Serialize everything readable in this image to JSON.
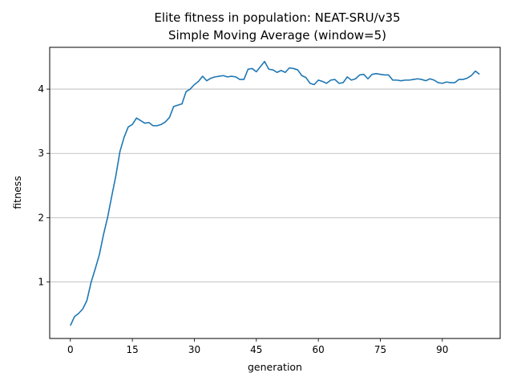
{
  "chart_data": {
    "type": "line",
    "title": "Elite fitness in population: NEAT-SRU/v35",
    "subtitle": "Simple Moving Average (window=5)",
    "xlabel": "generation",
    "ylabel": "fitness",
    "xlim": [
      -5,
      104
    ],
    "ylim": [
      0.12,
      4.65
    ],
    "xticks": [
      0,
      15,
      30,
      45,
      60,
      75,
      90
    ],
    "xtick_labels": [
      "0",
      "15",
      "30",
      "45",
      "60",
      "75",
      "90"
    ],
    "yticks": [
      1,
      2,
      3,
      4
    ],
    "ytick_labels": [
      "1",
      "2",
      "3",
      "4"
    ],
    "grid": "horizontal",
    "legend": "none",
    "line_color": "#1f77b4",
    "series": [
      {
        "x": [
          0,
          1,
          2,
          3,
          4,
          5,
          6,
          7,
          8,
          9,
          10,
          11,
          12,
          13,
          14,
          15,
          16,
          17,
          18,
          19,
          20,
          21,
          22,
          23,
          24,
          25,
          26,
          27,
          28,
          29,
          30,
          31,
          32,
          33,
          34,
          35,
          36,
          37,
          38,
          39,
          40,
          41,
          42,
          43,
          44,
          45,
          46,
          47,
          48,
          49,
          50,
          51,
          52,
          53,
          54,
          55,
          56,
          57,
          58,
          59,
          60,
          61,
          62,
          63,
          64,
          65,
          66,
          67,
          68,
          69,
          70,
          71,
          72,
          73,
          74,
          75,
          76,
          77,
          78,
          79,
          80,
          81,
          82,
          83,
          84,
          85,
          86,
          87,
          88,
          89,
          90,
          91,
          92,
          93,
          94,
          95,
          96,
          97,
          98,
          99
        ],
        "values": [
          0.32,
          0.46,
          0.51,
          0.58,
          0.71,
          0.99,
          1.2,
          1.42,
          1.73,
          2.0,
          2.33,
          2.65,
          3.03,
          3.25,
          3.41,
          3.45,
          3.55,
          3.51,
          3.47,
          3.48,
          3.43,
          3.43,
          3.45,
          3.49,
          3.56,
          3.73,
          3.75,
          3.77,
          3.96,
          4.0,
          4.07,
          4.12,
          4.2,
          4.13,
          4.17,
          4.19,
          4.2,
          4.21,
          4.19,
          4.2,
          4.19,
          4.15,
          4.15,
          4.31,
          4.32,
          4.27,
          4.35,
          4.43,
          4.31,
          4.3,
          4.26,
          4.29,
          4.26,
          4.33,
          4.32,
          4.3,
          4.21,
          4.18,
          4.09,
          4.07,
          4.14,
          4.12,
          4.09,
          4.14,
          4.15,
          4.09,
          4.1,
          4.19,
          4.14,
          4.16,
          4.22,
          4.23,
          4.16,
          4.23,
          4.24,
          4.23,
          4.22,
          4.22,
          4.14,
          4.14,
          4.13,
          4.14,
          4.14,
          4.15,
          4.16,
          4.15,
          4.13,
          4.16,
          4.14,
          4.1,
          4.09,
          4.11,
          4.1,
          4.1,
          4.15,
          4.15,
          4.17,
          4.21,
          4.28,
          4.23
        ]
      }
    ]
  }
}
